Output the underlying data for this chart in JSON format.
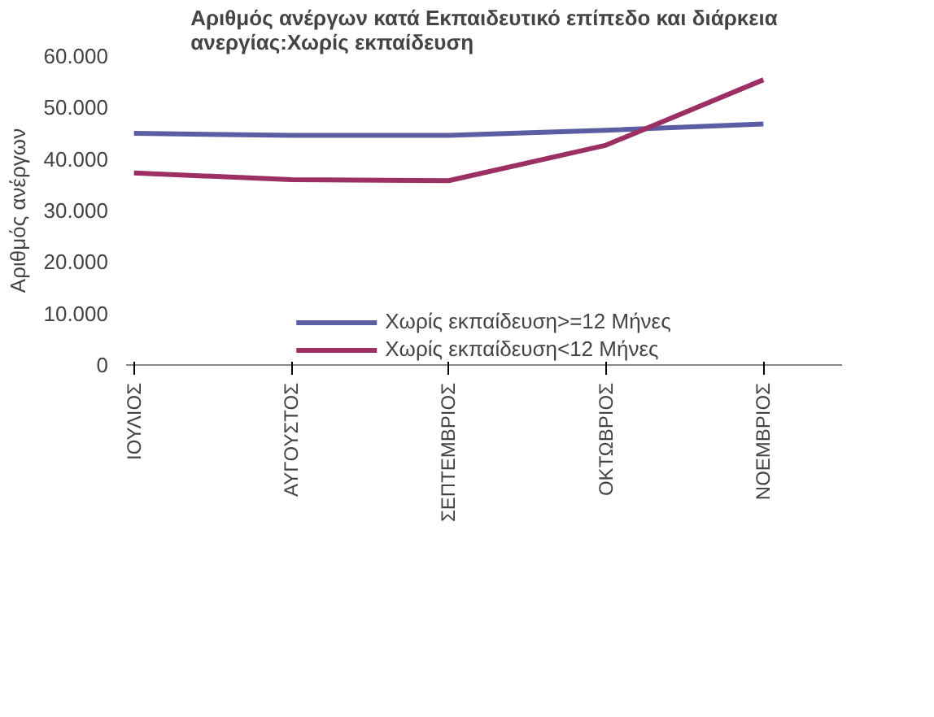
{
  "chart_data": {
    "type": "line",
    "title": "Αριθμός ανέργων κατά Εκπαιδευτικό επίπεδο και διάρκεια ανεργίας:Χωρίς εκπαίδευση",
    "ylabel": "Αριθμός ανέργων",
    "categories": [
      "ΙΟΥΛΙΟΣ",
      "ΑΥΓΟΥΣΤΟΣ",
      "ΣΕΠΤΕΜΒΡΙΟΣ",
      "ΟΚΤΩΒΡΙΟΣ",
      "ΝΟΕΜΒΡΙΟΣ"
    ],
    "series": [
      {
        "name": "Χωρίς εκπαίδευση>=12 Μήνες",
        "color": "#5c5ea3",
        "values": [
          45000,
          44600,
          44600,
          45600,
          46800
        ]
      },
      {
        "name": "Χωρίς εκπαίδευση<12 Μήνες",
        "color": "#9c2f63",
        "values": [
          37300,
          36000,
          35800,
          42700,
          55400
        ]
      }
    ],
    "ylim": [
      0,
      60000
    ],
    "yticks": [
      0,
      {
        "value": 10000,
        "label": "10.000"
      },
      {
        "value": 20000,
        "label": "20.000"
      },
      {
        "value": 30000,
        "label": "30.000"
      },
      {
        "value": 40000,
        "label": "40.000"
      },
      {
        "value": 50000,
        "label": "50.000"
      },
      {
        "value": 60000,
        "label": "60.000"
      }
    ],
    "grid": false,
    "legend": "bottom",
    "marker": "none",
    "line_style": "solid"
  }
}
